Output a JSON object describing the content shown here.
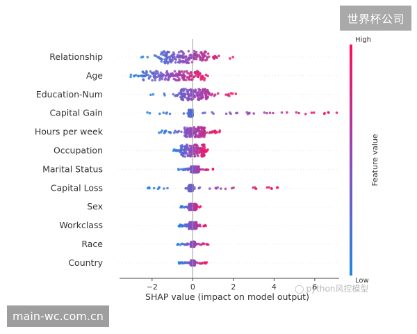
{
  "watermarks": {
    "top_right": "世界杯公司",
    "bottom_left": "main-wc.com.cn",
    "middle": "python风控模型"
  },
  "colors": {
    "low": "#1e88e5",
    "high": "#ff0d57",
    "zero_line": "#999999",
    "axis": "#444444",
    "text": "#333333"
  },
  "chart_data": {
    "type": "scatter",
    "subtype": "shap-beeswarm-summary",
    "xlabel": "SHAP value (impact on model output)",
    "xlim": [
      -3.6,
      7.2
    ],
    "xticks": [
      -2,
      0,
      2,
      4,
      6
    ],
    "colorbar": {
      "label": "Feature value",
      "high_label": "High",
      "low_label": "Low"
    },
    "features": [
      {
        "name": "Relationship",
        "min": -2.6,
        "max": 2.0,
        "dense_low": -1.6,
        "dense_high": 0.8,
        "width": 1.0
      },
      {
        "name": "Age",
        "min": -3.1,
        "max": 0.9,
        "dense_low": -2.5,
        "dense_high": 0.6,
        "width": 0.75
      },
      {
        "name": "Education-Num",
        "min": -2.1,
        "max": 2.2,
        "dense_low": -0.6,
        "dense_high": 0.8,
        "width": 0.9
      },
      {
        "name": "Capital Gain",
        "min": -2.4,
        "max": 7.2,
        "dense_low": -0.2,
        "dense_high": 0.0,
        "width": 0.55
      },
      {
        "name": "Hours per week",
        "min": -1.7,
        "max": 1.4,
        "dense_low": -0.4,
        "dense_high": 0.6,
        "width": 0.8
      },
      {
        "name": "Occupation",
        "min": -1.0,
        "max": 0.8,
        "dense_low": -0.6,
        "dense_high": 0.6,
        "width": 0.95
      },
      {
        "name": "Marital Status",
        "min": -0.8,
        "max": 1.0,
        "dense_low": -0.1,
        "dense_high": 0.3,
        "width": 0.5
      },
      {
        "name": "Capital Loss",
        "min": -2.3,
        "max": 4.2,
        "dense_low": -0.2,
        "dense_high": 0.0,
        "width": 0.5
      },
      {
        "name": "Sex",
        "min": -0.6,
        "max": 0.4,
        "dense_low": -0.2,
        "dense_high": 0.2,
        "width": 0.5
      },
      {
        "name": "Workclass",
        "min": -0.7,
        "max": 0.7,
        "dense_low": -0.2,
        "dense_high": 0.2,
        "width": 0.55
      },
      {
        "name": "Race",
        "min": -0.8,
        "max": 0.8,
        "dense_low": -0.1,
        "dense_high": 0.1,
        "width": 0.4
      },
      {
        "name": "Country",
        "min": -0.7,
        "max": 0.7,
        "dense_low": -0.1,
        "dense_high": 0.1,
        "width": 0.4
      }
    ]
  }
}
